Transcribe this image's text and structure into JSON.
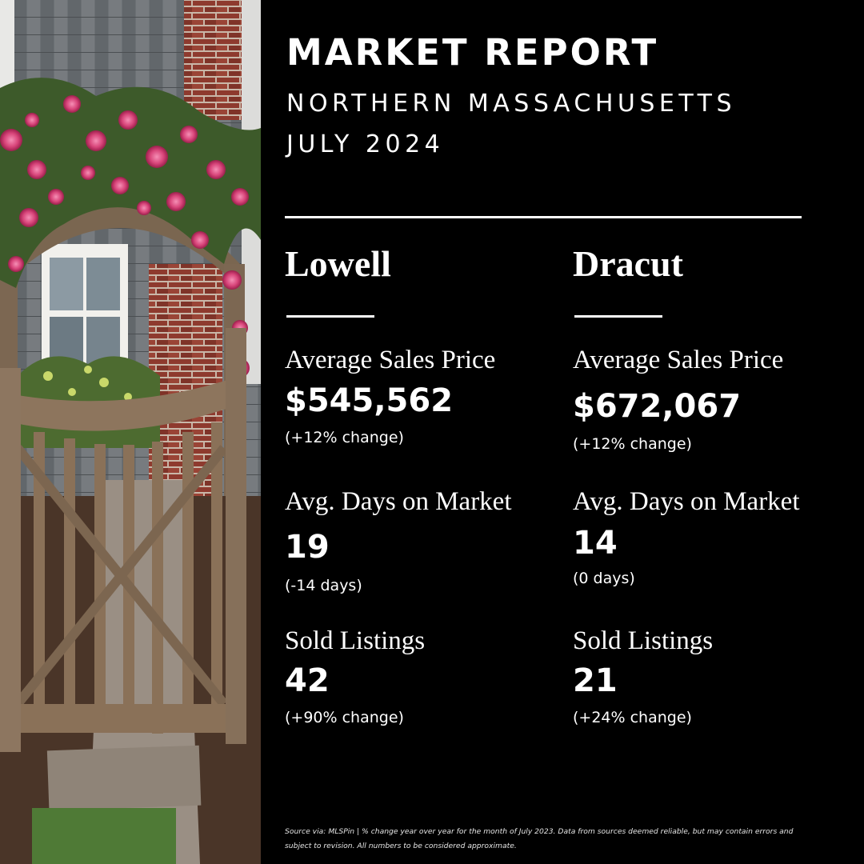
{
  "header": {
    "title": "MARKET REPORT",
    "region": "NORTHERN MASSACHUSETTS",
    "period": "JULY 2024"
  },
  "towns": [
    {
      "name": "Lowell",
      "avg_price": {
        "label": "Average Sales Price",
        "value": "$545,562",
        "change": "(+12% change)"
      },
      "days_on_market": {
        "label": "Avg. Days on Market",
        "value": "19",
        "change": "(-14 days)"
      },
      "sold_listings": {
        "label": "Sold Listings",
        "value": "42",
        "change": "(+90% change)"
      }
    },
    {
      "name": "Dracut",
      "avg_price": {
        "label": "Average Sales Price",
        "value": "$672,067",
        "change": "(+12% change)"
      },
      "days_on_market": {
        "label": "Avg. Days on Market",
        "value": "14",
        "change": "(0 days)"
      },
      "sold_listings": {
        "label": "Sold Listings",
        "value": "21",
        "change": "(+24% change)"
      }
    }
  ],
  "footer": {
    "source": "Source via: MLSPin | % change year over year for the month of July 2023. Data from sources deemed reliable, but may contain errors and subject to revision. All numbers to be considered approximate."
  },
  "colors": {
    "background": "#000000",
    "text": "#ffffff",
    "shingle": "#6e7276",
    "brick": "#8e3a2e",
    "wood": "#8a7158",
    "roses": "#d8457a",
    "foliage": "#3d5a2a"
  },
  "photo": {
    "icon": "garden-gate-photo"
  }
}
